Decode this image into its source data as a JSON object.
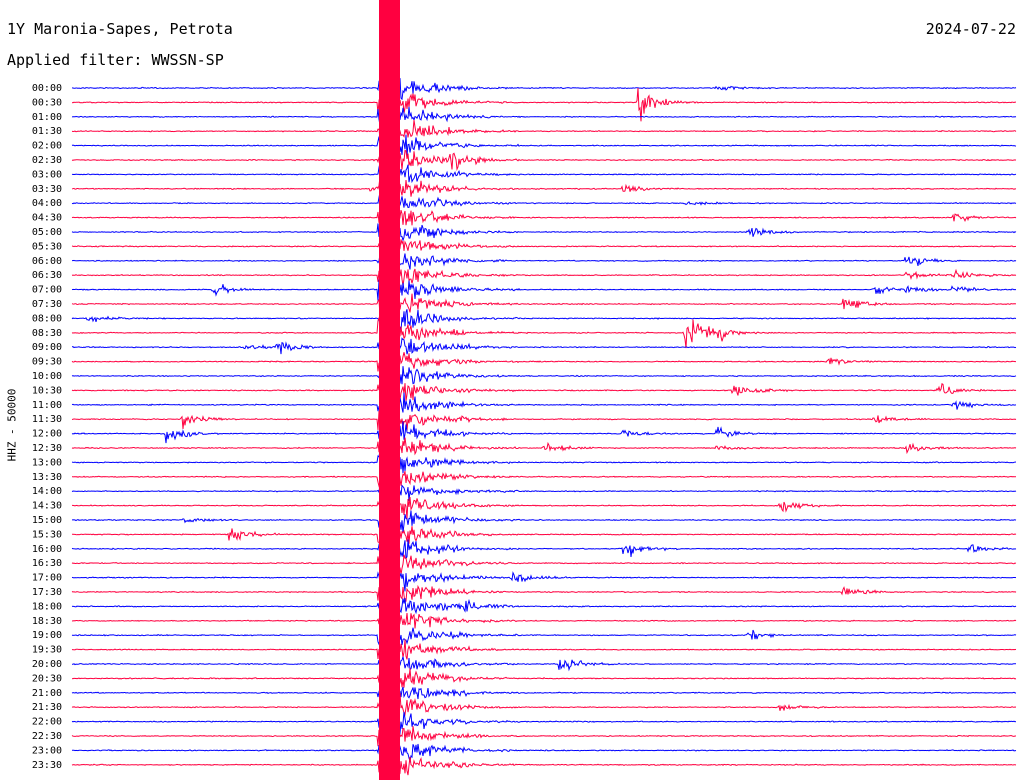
{
  "header": {
    "station": "1Y Maronia-Sapes, Petrota",
    "date": "2024-07-22",
    "filter": "Applied filter: WWSSN-SP",
    "channel": "HHZ - 50000"
  },
  "colors": {
    "blue": "#0000ff",
    "red": "#ff0040"
  },
  "chart_data": {
    "type": "line",
    "subtype": "helicorder",
    "rows": [
      "00:00",
      "00:30",
      "01:00",
      "01:30",
      "02:00",
      "02:30",
      "03:00",
      "03:30",
      "04:00",
      "04:30",
      "05:00",
      "05:30",
      "06:00",
      "06:30",
      "07:00",
      "07:30",
      "08:00",
      "08:30",
      "09:00",
      "09:30",
      "10:00",
      "10:30",
      "11:00",
      "11:30",
      "12:00",
      "12:30",
      "13:00",
      "13:30",
      "14:00",
      "14:30",
      "15:00",
      "15:30",
      "16:00",
      "16:30",
      "17:00",
      "17:30",
      "18:00",
      "18:30",
      "19:00",
      "19:30",
      "20:00",
      "20:30",
      "21:00",
      "21:30",
      "22:00",
      "22:30",
      "23:00",
      "23:30"
    ],
    "row_colors": [
      "blue",
      "red"
    ],
    "row_minutes": 30,
    "events": [
      {
        "row": 0,
        "minute": 20.5,
        "amp": 4
      },
      {
        "row": 1,
        "minute": 18,
        "amp": 24
      },
      {
        "row": 5,
        "minute": 12,
        "amp": 14
      },
      {
        "row": 7,
        "minute": 9.5,
        "amp": 5
      },
      {
        "row": 7,
        "minute": 17.5,
        "amp": 6
      },
      {
        "row": 8,
        "minute": 19.5,
        "amp": 4
      },
      {
        "row": 9,
        "minute": 28,
        "amp": 8
      },
      {
        "row": 10,
        "minute": 21.5,
        "amp": 10
      },
      {
        "row": 12,
        "minute": 26.5,
        "amp": 10
      },
      {
        "row": 13,
        "minute": 26.5,
        "amp": 8
      },
      {
        "row": 13,
        "minute": 28,
        "amp": 8
      },
      {
        "row": 14,
        "minute": 4.5,
        "amp": 9
      },
      {
        "row": 14,
        "minute": 25.5,
        "amp": 7
      },
      {
        "row": 14,
        "minute": 26.5,
        "amp": 6
      },
      {
        "row": 14,
        "minute": 28,
        "amp": 7
      },
      {
        "row": 15,
        "minute": 24.5,
        "amp": 10
      },
      {
        "row": 16,
        "minute": 0.5,
        "amp": 7
      },
      {
        "row": 17,
        "minute": 19.5,
        "amp": 30
      },
      {
        "row": 17,
        "minute": 20.5,
        "amp": 7
      },
      {
        "row": 18,
        "minute": 5.5,
        "amp": 6
      },
      {
        "row": 18,
        "minute": 6.5,
        "amp": 10
      },
      {
        "row": 19,
        "minute": 24,
        "amp": 6
      },
      {
        "row": 21,
        "minute": 21,
        "amp": 14
      },
      {
        "row": 21,
        "minute": 27.5,
        "amp": 10
      },
      {
        "row": 22,
        "minute": 28,
        "amp": 9
      },
      {
        "row": 23,
        "minute": 3.5,
        "amp": 12
      },
      {
        "row": 23,
        "minute": 25.5,
        "amp": 6
      },
      {
        "row": 24,
        "minute": 3,
        "amp": 14
      },
      {
        "row": 24,
        "minute": 17.5,
        "amp": 7
      },
      {
        "row": 24,
        "minute": 20.5,
        "amp": 9
      },
      {
        "row": 25,
        "minute": 15,
        "amp": 9
      },
      {
        "row": 25,
        "minute": 20.5,
        "amp": 6
      },
      {
        "row": 25,
        "minute": 26.5,
        "amp": 7
      },
      {
        "row": 29,
        "minute": 22.5,
        "amp": 10
      },
      {
        "row": 30,
        "minute": 3.5,
        "amp": 5
      },
      {
        "row": 31,
        "minute": 5,
        "amp": 13
      },
      {
        "row": 32,
        "minute": 17.5,
        "amp": 14
      },
      {
        "row": 32,
        "minute": 28.5,
        "amp": 6
      },
      {
        "row": 34,
        "minute": 14,
        "amp": 12
      },
      {
        "row": 35,
        "minute": 24.5,
        "amp": 10
      },
      {
        "row": 36,
        "minute": 12.5,
        "amp": 11
      },
      {
        "row": 38,
        "minute": 21.5,
        "amp": 7
      },
      {
        "row": 40,
        "minute": 15.5,
        "amp": 14
      },
      {
        "row": 43,
        "minute": 22.5,
        "amp": 5
      }
    ]
  }
}
